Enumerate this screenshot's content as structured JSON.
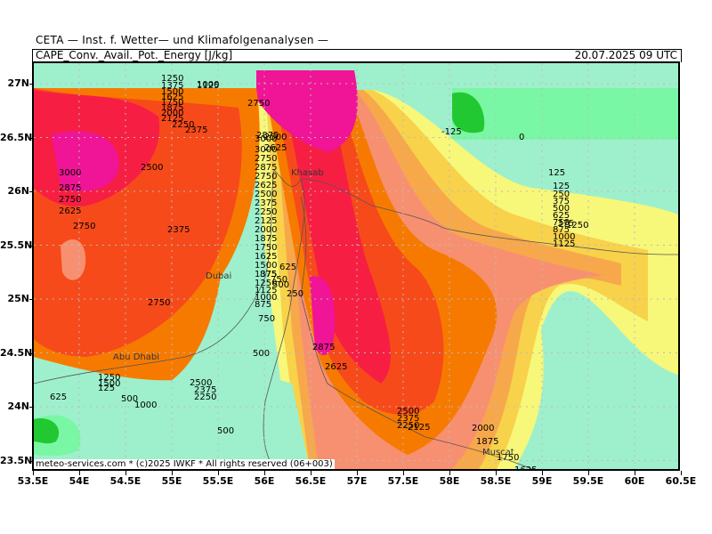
{
  "header": {
    "institute": "CETA — Inst. f. Wetter— und Klimafolgenanalysen —",
    "parameter": "CAPE_Conv._Avail._Pot._Energy [J/kg]",
    "valid_time": "20.07.2025 09 UTC"
  },
  "axes": {
    "lat_labels": [
      "27N",
      "26.5N",
      "26N",
      "25.5N",
      "25N",
      "24.5N",
      "24N",
      "23.5N"
    ],
    "lon_labels": [
      "53.5E",
      "54E",
      "54.5E",
      "55E",
      "55.5E",
      "56E",
      "56.5E",
      "57E",
      "57.5E",
      "58E",
      "58.5E",
      "59E",
      "59.5E",
      "60E",
      "60.5E"
    ]
  },
  "credit": "meteo-services.com * (c)2025 IWKF * All rights reserved (06+003)",
  "cities": [
    "Khasab",
    "Dubai",
    "Abu Dhabi",
    "Muscat"
  ],
  "contour_labels": [
    "1250",
    "1000",
    "1125",
    "1375",
    "1500",
    "1625",
    "1750",
    "1875",
    "2000",
    "2125",
    "2250",
    "2375",
    "2500",
    "2625",
    "2750",
    "2875",
    "3000",
    "3000",
    "2750",
    "2875",
    "2750",
    "2625",
    "2500",
    "2375",
    "2250",
    "2125",
    "2000",
    "1875",
    "1750",
    "1625",
    "1500",
    "1375",
    "1250",
    "1125",
    "1000",
    "875",
    "750",
    "625",
    "500",
    "250",
    "2500",
    "2375",
    "2250",
    "2500",
    "2375",
    "3000",
    "2875",
    "2750",
    "2625",
    "2750",
    "2750",
    "2875",
    "2625",
    "2500",
    "2375",
    "2250",
    "2125",
    "2000",
    "1875",
    "1750",
    "1625",
    "125",
    "0",
    "-125",
    "125",
    "250",
    "375",
    "500",
    "625",
    "750",
    "875",
    "1000",
    "1125",
    "1250",
    "375",
    "625",
    "500",
    "1000",
    "1250",
    "1500",
    "125",
    "500",
    "500",
    "750",
    "875"
  ],
  "colors": {
    "c_neg": "#22c832",
    "c0": "#7af7a4",
    "c125": "#9ef0cc",
    "c500": "#f7f77a",
    "c1000": "#f7d24a",
    "c1500": "#f7a84a",
    "c1750": "#f79070",
    "c2000": "#f77a00",
    "c2500": "#f74a1a",
    "c2750": "#f71e44",
    "c3000": "#f01496"
  }
}
